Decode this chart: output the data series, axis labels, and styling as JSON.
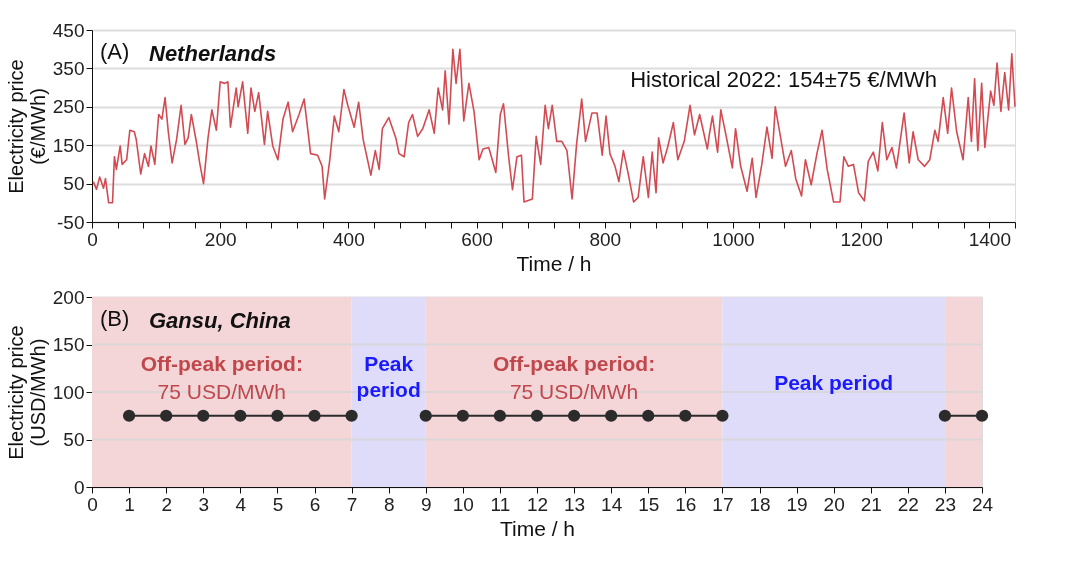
{
  "chart_data": [
    {
      "type": "line",
      "title": "Netherlands",
      "xlabel": "Time / h",
      "ylabel": "Electricity price\n(€/MWh)",
      "annotations": [
        "(A)",
        "Historical 2022: 154±75 €/MWh"
      ],
      "xlim": [
        0,
        1440
      ],
      "ylim": [
        -50,
        450
      ],
      "xticks": [
        0,
        {
          "value": 40,
          "label": null
        },
        {
          "value": 80,
          "label": null
        },
        {
          "value": 120,
          "label": null
        },
        {
          "value": 160,
          "label": null
        },
        200,
        {
          "value": 240,
          "label": null
        },
        {
          "value": 280,
          "label": null
        },
        {
          "value": 320,
          "label": null
        },
        {
          "value": 360,
          "label": null
        },
        400,
        {
          "value": 440,
          "label": null
        },
        {
          "value": 480,
          "label": null
        },
        {
          "value": 520,
          "label": null
        },
        {
          "value": 560,
          "label": null
        },
        600,
        {
          "value": 640,
          "label": null
        },
        {
          "value": 680,
          "label": null
        },
        {
          "value": 720,
          "label": null
        },
        {
          "value": 760,
          "label": null
        },
        800,
        {
          "value": 840,
          "label": null
        },
        {
          "value": 880,
          "label": null
        },
        {
          "value": 920,
          "label": null
        },
        {
          "value": 960,
          "label": null
        },
        1000,
        {
          "value": 1040,
          "label": null
        },
        {
          "value": 1080,
          "label": null
        },
        {
          "value": 1120,
          "label": null
        },
        {
          "value": 1160,
          "label": null
        },
        1200,
        {
          "value": 1240,
          "label": null
        },
        {
          "value": 1280,
          "label": null
        },
        {
          "value": 1320,
          "label": null
        },
        {
          "value": 1360,
          "label": null
        },
        1400,
        {
          "value": 1440,
          "label": null
        }
      ],
      "yticks": [
        -50,
        50,
        150,
        250,
        350,
        450
      ],
      "grid": "y",
      "line_style": "solid",
      "marker": "none",
      "series": [
        {
          "color": "#d24b53",
          "x": [
            2,
            7,
            12,
            18,
            21,
            26,
            32,
            35,
            38,
            44,
            47,
            54,
            59,
            66,
            69,
            76,
            82,
            88,
            92,
            98,
            104,
            109,
            114,
            119,
            125,
            132,
            139,
            145,
            150,
            155,
            163,
            168,
            174,
            181,
            187,
            194,
            200,
            207,
            212,
            216,
            225,
            228,
            235,
            243,
            248,
            254,
            260,
            269,
            274,
            282,
            290,
            298,
            306,
            313,
            323,
            331,
            341,
            352,
            359,
            363,
            371,
            378,
            385,
            393,
            399,
            409,
            416,
            423,
            435,
            442,
            448,
            453,
            463,
            474,
            479,
            487,
            494,
            500,
            508,
            516,
            526,
            534,
            540,
            547,
            551,
            557,
            563,
            568,
            574,
            580,
            588,
            596,
            604,
            610,
            619,
            630,
            637,
            642,
            650,
            656,
            663,
            670,
            674,
            687,
            693,
            700,
            707,
            712,
            718,
            725,
            733,
            741,
            749,
            756,
            764,
            770,
            780,
            788,
            796,
            802,
            808,
            816,
            822,
            829,
            837,
            845,
            852,
            860,
            868,
            874,
            880,
            884,
            891,
            898,
            907,
            914,
            924,
            933,
            940,
            948,
            960,
            963,
            968,
            976,
            981,
            989,
            999,
            1004,
            1012,
            1022,
            1030,
            1036,
            1045,
            1053,
            1061,
            1066,
            1074,
            1082,
            1091,
            1098,
            1107,
            1113,
            1122,
            1131,
            1139,
            1147,
            1157,
            1167,
            1173,
            1180,
            1188,
            1196,
            1205,
            1211,
            1219,
            1226,
            1233,
            1240,
            1248,
            1255,
            1267,
            1275,
            1281,
            1289,
            1299,
            1307,
            1315,
            1320,
            1328,
            1335,
            1341,
            1349,
            1359,
            1367,
            1372,
            1377,
            1382,
            1388,
            1393,
            1402,
            1407,
            1412,
            1418,
            1424,
            1430,
            1435,
            1440
          ],
          "values": [
            55,
            35,
            67,
            38,
            63,
            0,
            0,
            120,
            87,
            148,
            100,
            112,
            189,
            185,
            165,
            75,
            128,
            95,
            148,
            100,
            230,
            218,
            274,
            185,
            104,
            165,
            254,
            152,
            169,
            230,
            157,
            104,
            50,
            169,
            242,
            189,
            315,
            311,
            315,
            197,
            299,
            250,
            315,
            181,
            299,
            238,
            287,
            152,
            238,
            148,
            112,
            218,
            262,
            185,
            230,
            270,
            128,
            124,
            95,
            10,
            112,
            226,
            185,
            295,
            254,
            197,
            262,
            165,
            72,
            136,
            87,
            193,
            222,
            169,
            128,
            120,
            209,
            230,
            173,
            193,
            242,
            181,
            299,
            242,
            344,
            205,
            400,
            311,
            400,
            213,
            311,
            238,
            112,
            140,
            144,
            79,
            230,
            258,
            120,
            34,
            120,
            124,
            2,
            10,
            173,
            100,
            254,
            193,
            254,
            160,
            160,
            136,
            10,
            152,
            270,
            160,
            234,
            234,
            124,
            226,
            128,
            95,
            55,
            136,
            72,
            2,
            14,
            120,
            14,
            132,
            26,
            169,
            104,
            144,
            209,
            112,
            160,
            254,
            177,
            230,
            140,
            177,
            226,
            132,
            242,
            177,
            91,
            193,
            95,
            30,
            116,
            14,
            100,
            197,
            116,
            250,
            173,
            95,
            136,
            62,
            18,
            112,
            47,
            128,
            189,
            87,
            2,
            2,
            120,
            95,
            100,
            26,
            5,
            108,
            132,
            83,
            209,
            112,
            144,
            91,
            234,
            104,
            185,
            112,
            95,
            112,
            189,
            160,
            274,
            181,
            299,
            185,
            112,
            274,
            160,
            323,
            136,
            311,
            144,
            291,
            254,
            364,
            238,
            339,
            242,
            388,
            250
          ]
        }
      ]
    },
    {
      "type": "line",
      "title": "Gansu, China",
      "xlabel": "Time / h",
      "ylabel": "Electricity price\n(USD/MWh)",
      "annotations": [
        "(B)"
      ],
      "xlim": [
        0,
        24
      ],
      "ylim": [
        0,
        200
      ],
      "xticks": [
        0,
        1,
        2,
        3,
        4,
        5,
        6,
        7,
        8,
        9,
        10,
        11,
        12,
        13,
        14,
        15,
        16,
        17,
        18,
        19,
        20,
        21,
        22,
        23,
        24
      ],
      "yticks": [
        0,
        50,
        100,
        150,
        200
      ],
      "grid": "y",
      "line_style": "solid",
      "marker": "circle",
      "bands": [
        {
          "axis": "x",
          "from": 0,
          "to": 7,
          "label": "Off-peak period:\n75 USD/MWh",
          "color": "#f4d6d9"
        },
        {
          "axis": "x",
          "from": 7,
          "to": 9,
          "label": "Peak period",
          "color": "#dedcf9"
        },
        {
          "axis": "x",
          "from": 9,
          "to": 17,
          "label": "Off-peak period:\n75 USD/MWh",
          "color": "#f4d6d9"
        },
        {
          "axis": "x",
          "from": 17,
          "to": 23,
          "label": "Peak period",
          "color": "#dedcf9"
        },
        {
          "axis": "x",
          "from": 23,
          "to": 24,
          "color": "#f4d6d9"
        }
      ],
      "series": [
        {
          "color": "#2b2b2b",
          "x": [
            1,
            2,
            3,
            4,
            5,
            6,
            7,
            8,
            9,
            10,
            11,
            12,
            13,
            14,
            15,
            16,
            17,
            18,
            19,
            20,
            21,
            22,
            23,
            24
          ],
          "values": [
            75,
            75,
            75,
            75,
            75,
            75,
            75,
            null,
            75,
            75,
            75,
            75,
            75,
            75,
            75,
            75,
            75,
            null,
            null,
            null,
            null,
            null,
            75,
            75
          ]
        }
      ]
    }
  ]
}
